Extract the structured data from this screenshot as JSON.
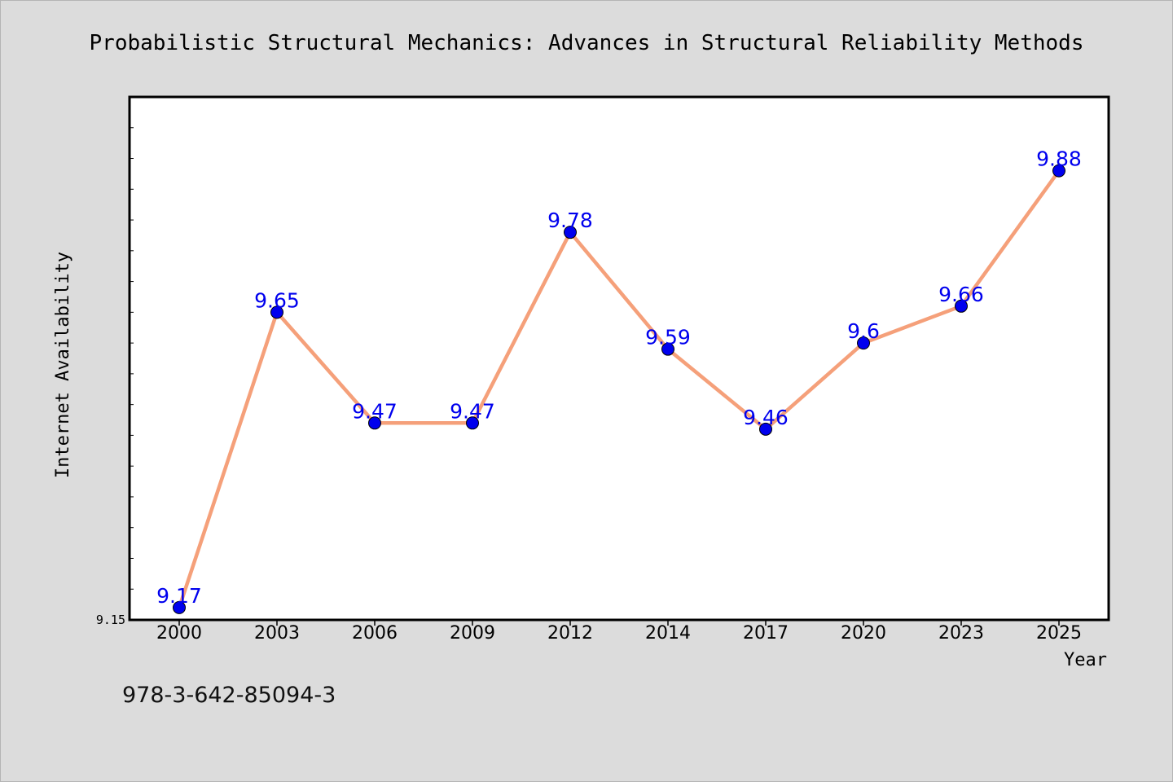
{
  "chart_data": {
    "type": "line",
    "title": "Probabilistic Structural Mechanics: Advances in Structural Reliability Methods",
    "xlabel": "Year",
    "ylabel": "Internet Availability",
    "categories": [
      "2000",
      "2003",
      "2006",
      "2009",
      "2012",
      "2014",
      "2017",
      "2020",
      "2023",
      "2025"
    ],
    "series": [
      {
        "values": [
          9.17,
          9.65,
          9.47,
          9.47,
          9.78,
          9.59,
          9.46,
          9.6,
          9.66,
          9.88
        ],
        "labels": [
          "9.17",
          "9.65",
          "9.47",
          "9.47",
          "9.78",
          "9.59",
          "9.46",
          "9.6",
          "9.66",
          "9.88"
        ],
        "line_color": "#f5a07a",
        "marker_color": "#0000ee",
        "label_color": "#0000ee"
      }
    ],
    "ylim": [
      9.15,
      10.0
    ],
    "yticks_labeled": [
      "9.15"
    ],
    "grid": false,
    "legend": "none"
  },
  "footer": {
    "isbn": "978-3-642-85094-3"
  },
  "colors": {
    "background": "#dcdcdc",
    "plot_background": "#ffffff",
    "axes": "#000000"
  }
}
